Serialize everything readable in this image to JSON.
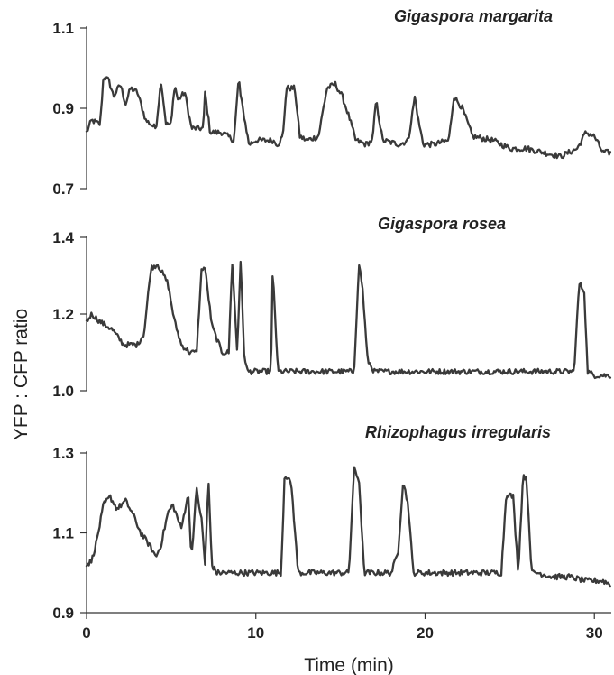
{
  "chart_data": [
    {
      "type": "line",
      "title": "Gigaspora margarita",
      "ylim": [
        0.7,
        1.1
      ],
      "yticks": [
        "0.7",
        "0.9",
        "1.1"
      ],
      "xlim": [
        0,
        31
      ],
      "baseline": 0.8,
      "series": [
        {
          "x": [
            0,
            0.3,
            0.8,
            1.0,
            1.3,
            1.6,
            2.0,
            2.3,
            2.6,
            3.0,
            3.5,
            4.1,
            4.4,
            4.7,
            5.0,
            5.2,
            5.4,
            5.8,
            6.2,
            6.9,
            7.0,
            7.3,
            8.0,
            8.7,
            9.0,
            9.1,
            9.6,
            10.0,
            11.0,
            11.3,
            11.6,
            11.8,
            12.3,
            12.6,
            13.0,
            13.7,
            14.2,
            14.7,
            15.1,
            15.5,
            15.9,
            16.5,
            16.9,
            17.1,
            17.5,
            18.5,
            19.0,
            19.4,
            19.6,
            19.9,
            20.5,
            21.4,
            21.7,
            22.2,
            22.8,
            24.0,
            25.0,
            26.0,
            27.0,
            28.0,
            28.5,
            29.0,
            29.5,
            30.0,
            30.5,
            31.0
          ],
          "values": [
            0.84,
            0.87,
            0.86,
            0.98,
            0.97,
            0.93,
            0.96,
            0.91,
            0.95,
            0.94,
            0.87,
            0.85,
            0.97,
            0.86,
            0.86,
            0.96,
            0.92,
            0.94,
            0.85,
            0.85,
            0.94,
            0.84,
            0.84,
            0.82,
            0.98,
            0.93,
            0.81,
            0.82,
            0.82,
            0.81,
            0.83,
            0.95,
            0.95,
            0.83,
            0.82,
            0.83,
            0.95,
            0.96,
            0.93,
            0.88,
            0.82,
            0.81,
            0.82,
            0.92,
            0.82,
            0.81,
            0.82,
            0.93,
            0.87,
            0.81,
            0.81,
            0.82,
            0.93,
            0.9,
            0.83,
            0.82,
            0.8,
            0.8,
            0.79,
            0.78,
            0.79,
            0.8,
            0.84,
            0.83,
            0.79,
            0.79
          ]
        }
      ]
    },
    {
      "type": "line",
      "title": "Gigaspora rosea",
      "ylim": [
        1.0,
        1.4
      ],
      "yticks": [
        "1.0",
        "1.2",
        "1.4"
      ],
      "xlim": [
        0,
        31
      ],
      "baseline": 1.05,
      "series": [
        {
          "x": [
            0,
            0.3,
            0.8,
            1.5,
            2.2,
            3.0,
            3.4,
            3.8,
            4.2,
            4.8,
            5.2,
            5.6,
            6.1,
            6.5,
            6.8,
            7.0,
            7.4,
            8.0,
            8.4,
            8.6,
            8.9,
            9.1,
            9.3,
            9.5,
            10.0,
            10.9,
            11.0,
            11.3,
            12.0,
            13.0,
            14.0,
            15.0,
            15.8,
            16.1,
            16.3,
            16.6,
            17.0,
            18.0,
            20.0,
            22.0,
            24.0,
            26.0,
            28.0,
            28.8,
            29.1,
            29.4,
            29.6,
            30.0,
            31.0
          ],
          "values": [
            1.18,
            1.2,
            1.18,
            1.16,
            1.12,
            1.12,
            1.15,
            1.32,
            1.33,
            1.28,
            1.18,
            1.12,
            1.1,
            1.1,
            1.32,
            1.32,
            1.17,
            1.1,
            1.1,
            1.34,
            1.1,
            1.34,
            1.1,
            1.05,
            1.05,
            1.05,
            1.32,
            1.05,
            1.05,
            1.05,
            1.05,
            1.05,
            1.05,
            1.33,
            1.27,
            1.08,
            1.05,
            1.05,
            1.05,
            1.05,
            1.05,
            1.05,
            1.05,
            1.05,
            1.28,
            1.26,
            1.05,
            1.04,
            1.04
          ]
        }
      ]
    },
    {
      "type": "line",
      "title": "Rhizophagus irregularis",
      "ylim": [
        0.9,
        1.3
      ],
      "yticks": [
        "0.9",
        "1.1",
        "1.3"
      ],
      "xlim": [
        0,
        31
      ],
      "xticks": [
        "0",
        "10",
        "20",
        "30"
      ],
      "xlabel": "Time (min)",
      "baseline": 1.0,
      "series": [
        {
          "x": [
            0,
            0.3,
            0.6,
            1.0,
            1.4,
            1.8,
            2.3,
            2.7,
            3.2,
            3.7,
            4.1,
            4.4,
            4.8,
            5.1,
            5.6,
            6.0,
            6.2,
            6.5,
            6.8,
            7.0,
            7.2,
            7.4,
            7.7,
            8.0,
            9.0,
            10.0,
            11.0,
            11.5,
            11.7,
            12.1,
            12.5,
            13.5,
            14.5,
            15.5,
            15.8,
            16.1,
            16.4,
            17.0,
            18.0,
            18.4,
            18.7,
            19.0,
            19.3,
            20.0,
            21.0,
            22.0,
            23.0,
            24.0,
            24.5,
            24.8,
            25.2,
            25.5,
            25.8,
            26.0,
            26.3,
            26.7,
            27.5,
            28.5,
            29.5,
            30.5,
            31.0
          ],
          "values": [
            1.02,
            1.03,
            1.08,
            1.17,
            1.19,
            1.16,
            1.18,
            1.15,
            1.1,
            1.07,
            1.04,
            1.07,
            1.15,
            1.17,
            1.11,
            1.2,
            1.04,
            1.21,
            1.13,
            1.02,
            1.23,
            1.02,
            1.0,
            1.0,
            1.0,
            1.0,
            1.0,
            1.0,
            1.25,
            1.22,
            1.0,
            1.0,
            1.0,
            1.0,
            1.26,
            1.23,
            1.0,
            1.0,
            1.0,
            1.05,
            1.23,
            1.17,
            1.0,
            1.0,
            1.0,
            1.0,
            1.0,
            1.0,
            1.0,
            1.2,
            1.19,
            1.0,
            1.25,
            1.23,
            1.0,
            1.0,
            0.99,
            0.99,
            0.98,
            0.98,
            0.97
          ]
        }
      ]
    }
  ],
  "shared_ylabel": "YFP : CFP ratio",
  "colors": {
    "trace": "#3a3a3a",
    "axis": "#333333",
    "text": "#222222"
  }
}
